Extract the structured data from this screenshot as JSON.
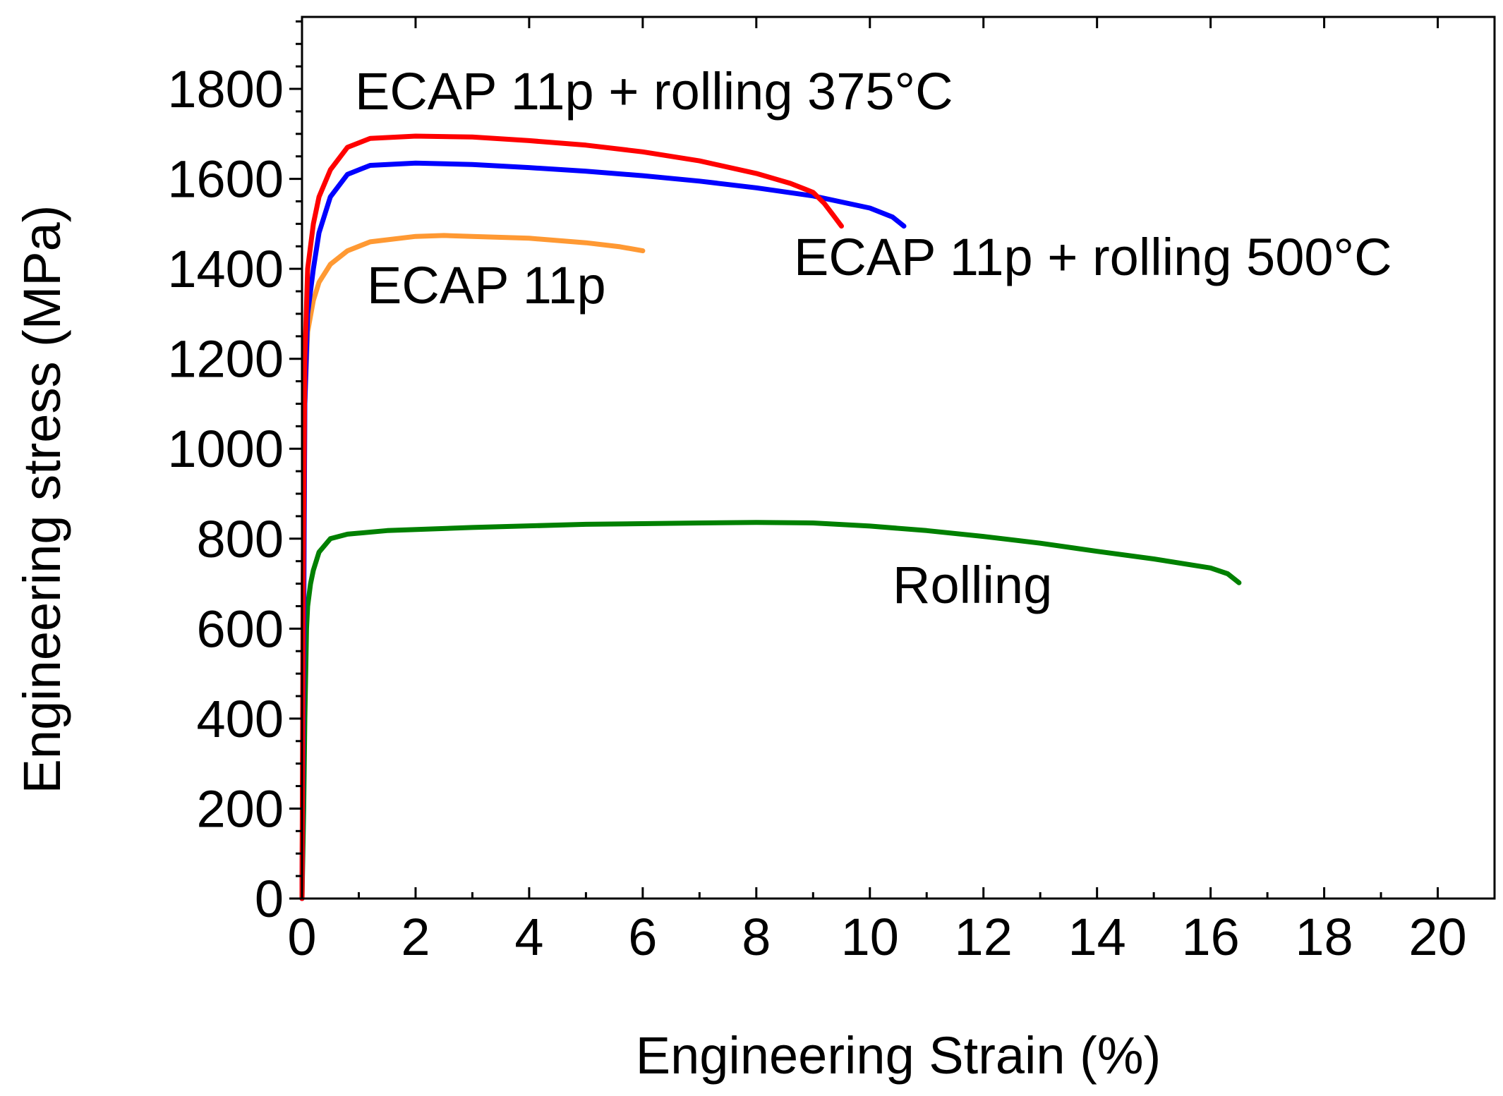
{
  "chart_data": {
    "type": "line",
    "title": "",
    "xlabel": "Engineering Strain (%)",
    "ylabel": "Engineering stress (MPa)",
    "xlim": [
      0,
      21
    ],
    "ylim": [
      0,
      1960
    ],
    "xticks": [
      "0",
      "2",
      "4",
      "6",
      "8",
      "10",
      "12",
      "14",
      "16",
      "18",
      "20"
    ],
    "yticks": [
      "0",
      "200",
      "400",
      "600",
      "800",
      "1000",
      "1200",
      "1400",
      "1600",
      "1800"
    ],
    "grid": false,
    "series": [
      {
        "name": "ECAP 11p + rolling 375°C",
        "color": "#ff0000",
        "label": "ECAP 11p + rolling 375°C",
        "x": [
          0,
          0.02,
          0.05,
          0.1,
          0.2,
          0.3,
          0.5,
          0.8,
          1.2,
          2,
          3,
          4,
          5,
          6,
          7,
          8,
          8.6,
          9.0,
          9.2,
          9.35,
          9.5
        ],
        "y": [
          0,
          700,
          1200,
          1400,
          1500,
          1560,
          1620,
          1670,
          1690,
          1695,
          1693,
          1685,
          1675,
          1660,
          1640,
          1612,
          1590,
          1570,
          1545,
          1520,
          1495
        ]
      },
      {
        "name": "ECAP 11p + rolling 500°C",
        "color": "#0000ff",
        "label": "ECAP 11p + rolling 500°C",
        "x": [
          0,
          0.03,
          0.05,
          0.1,
          0.2,
          0.3,
          0.5,
          0.8,
          1.2,
          2,
          3,
          4,
          5,
          6,
          7,
          8,
          9,
          10,
          10.4,
          10.6
        ],
        "y": [
          0,
          600,
          1100,
          1300,
          1400,
          1480,
          1560,
          1610,
          1630,
          1635,
          1632,
          1625,
          1617,
          1607,
          1595,
          1580,
          1562,
          1535,
          1515,
          1495
        ]
      },
      {
        "name": "ECAP 11p",
        "color": "#ff9933",
        "label": "ECAP 11p",
        "x": [
          0,
          0.02,
          0.05,
          0.1,
          0.2,
          0.3,
          0.5,
          0.8,
          1.2,
          2,
          2.5,
          3,
          4,
          5,
          5.6,
          6.0
        ],
        "y": [
          0,
          500,
          1100,
          1260,
          1330,
          1370,
          1410,
          1440,
          1460,
          1472,
          1474,
          1472,
          1468,
          1458,
          1449,
          1440
        ]
      },
      {
        "name": "Rolling",
        "color": "#008000",
        "label": "Rolling",
        "x": [
          0,
          0.03,
          0.05,
          0.08,
          0.1,
          0.15,
          0.2,
          0.3,
          0.5,
          0.8,
          1.5,
          3,
          5,
          7,
          8,
          9,
          10,
          11,
          12,
          13,
          14,
          15,
          16,
          16.3,
          16.5
        ],
        "y": [
          0,
          200,
          400,
          600,
          650,
          700,
          730,
          770,
          800,
          810,
          818,
          825,
          832,
          835,
          836,
          835,
          828,
          818,
          805,
          790,
          772,
          755,
          735,
          722,
          702
        ]
      }
    ]
  }
}
